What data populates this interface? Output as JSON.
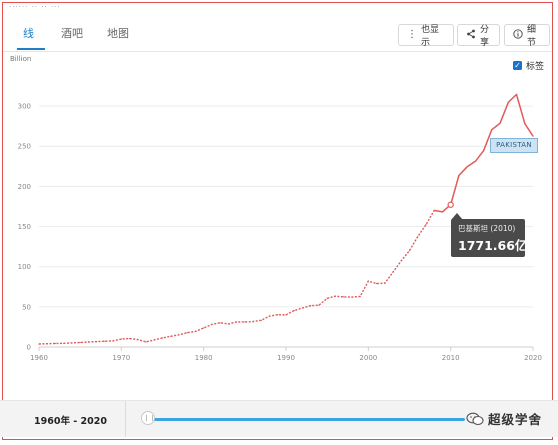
{
  "tabs": [
    {
      "label": "线",
      "active": true
    },
    {
      "label": "酒吧",
      "active": false
    },
    {
      "label": "地图",
      "active": false
    }
  ],
  "toolbar": {
    "show_label": "也显示",
    "share_label": "分享",
    "detail_label": "细节"
  },
  "checkbox": {
    "label": "标签",
    "checked": true
  },
  "tooltip": {
    "title": "巴基斯坦 (2010)",
    "value": "1771.66亿"
  },
  "series_label": "PAKISTAN",
  "range": {
    "label": "1960年 - 2020"
  },
  "watermark": {
    "text": "超级学舍"
  },
  "colors": {
    "line": "#e05a5a",
    "accent": "#1f7fc4",
    "slider": "#3aa5e0",
    "frame": "#e0504f"
  },
  "chart_data": {
    "type": "line",
    "ylabel": "Billion",
    "xlim": [
      1960,
      2020
    ],
    "ylim": [
      0,
      330
    ],
    "xticks": [
      1960,
      1970,
      1980,
      1990,
      2000,
      2010,
      2020
    ],
    "yticks": [
      0,
      50,
      100,
      150,
      200,
      250,
      300
    ],
    "grid": true,
    "series": [
      {
        "name": "PAKISTAN",
        "x": [
          1960,
          1961,
          1962,
          1963,
          1964,
          1965,
          1966,
          1967,
          1968,
          1969,
          1970,
          1971,
          1972,
          1973,
          1974,
          1975,
          1976,
          1977,
          1978,
          1979,
          1980,
          1981,
          1982,
          1983,
          1984,
          1985,
          1986,
          1987,
          1988,
          1989,
          1990,
          1991,
          1992,
          1993,
          1994,
          1995,
          1996,
          1997,
          1998,
          1999,
          2000,
          2001,
          2002,
          2003,
          2004,
          2005,
          2006,
          2007,
          2008,
          2009,
          2010,
          2011,
          2012,
          2013,
          2014,
          2015,
          2016,
          2017,
          2018,
          2019,
          2020
        ],
        "y": [
          3.7,
          4.1,
          4.3,
          4.6,
          5.1,
          5.6,
          6.2,
          6.7,
          7.2,
          7.6,
          9.9,
          10.6,
          9.2,
          6.3,
          8.8,
          11.3,
          13.3,
          15.2,
          17.8,
          19.4,
          23.7,
          28.1,
          30.1,
          28.7,
          31.2,
          31.1,
          31.8,
          33.2,
          38.5,
          40.2,
          40.0,
          45.5,
          48.6,
          51.5,
          52.0,
          60.6,
          63.3,
          62.4,
          62.2,
          62.9,
          82.0,
          79.1,
          79.4,
          93.3,
          107.5,
          120.1,
          137.3,
          152.4,
          170.1,
          168.2,
          177.2,
          213.6,
          224.4,
          231.2,
          244.4,
          270.6,
          278.7,
          304.6,
          314.5,
          278.2,
          262.6
        ]
      }
    ],
    "highlight": {
      "x": 2010,
      "y": 177.166
    }
  }
}
